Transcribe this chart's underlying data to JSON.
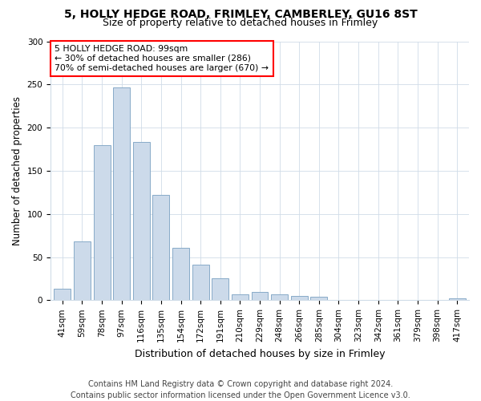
{
  "title1": "5, HOLLY HEDGE ROAD, FRIMLEY, CAMBERLEY, GU16 8ST",
  "title2": "Size of property relative to detached houses in Frimley",
  "xlabel": "Distribution of detached houses by size in Frimley",
  "ylabel": "Number of detached properties",
  "categories": [
    "41sqm",
    "59sqm",
    "78sqm",
    "97sqm",
    "116sqm",
    "135sqm",
    "154sqm",
    "172sqm",
    "191sqm",
    "210sqm",
    "229sqm",
    "248sqm",
    "266sqm",
    "285sqm",
    "304sqm",
    "323sqm",
    "342sqm",
    "361sqm",
    "379sqm",
    "398sqm",
    "417sqm"
  ],
  "values": [
    13,
    68,
    180,
    247,
    183,
    122,
    61,
    41,
    25,
    7,
    10,
    7,
    5,
    4,
    0,
    0,
    0,
    0,
    0,
    0,
    2
  ],
  "bar_color": "#ccdaea",
  "bar_edge_color": "#88aac8",
  "annotation_text": "5 HOLLY HEDGE ROAD: 99sqm\n← 30% of detached houses are smaller (286)\n70% of semi-detached houses are larger (670) →",
  "annotation_box_color": "white",
  "annotation_box_edge_color": "red",
  "footer": "Contains HM Land Registry data © Crown copyright and database right 2024.\nContains public sector information licensed under the Open Government Licence v3.0.",
  "ylim": [
    0,
    300
  ],
  "background_color": "white",
  "grid_color": "#d0dce8",
  "title1_fontsize": 10,
  "title2_fontsize": 9,
  "xlabel_fontsize": 9,
  "ylabel_fontsize": 8.5,
  "tick_fontsize": 7.5,
  "footer_fontsize": 7
}
